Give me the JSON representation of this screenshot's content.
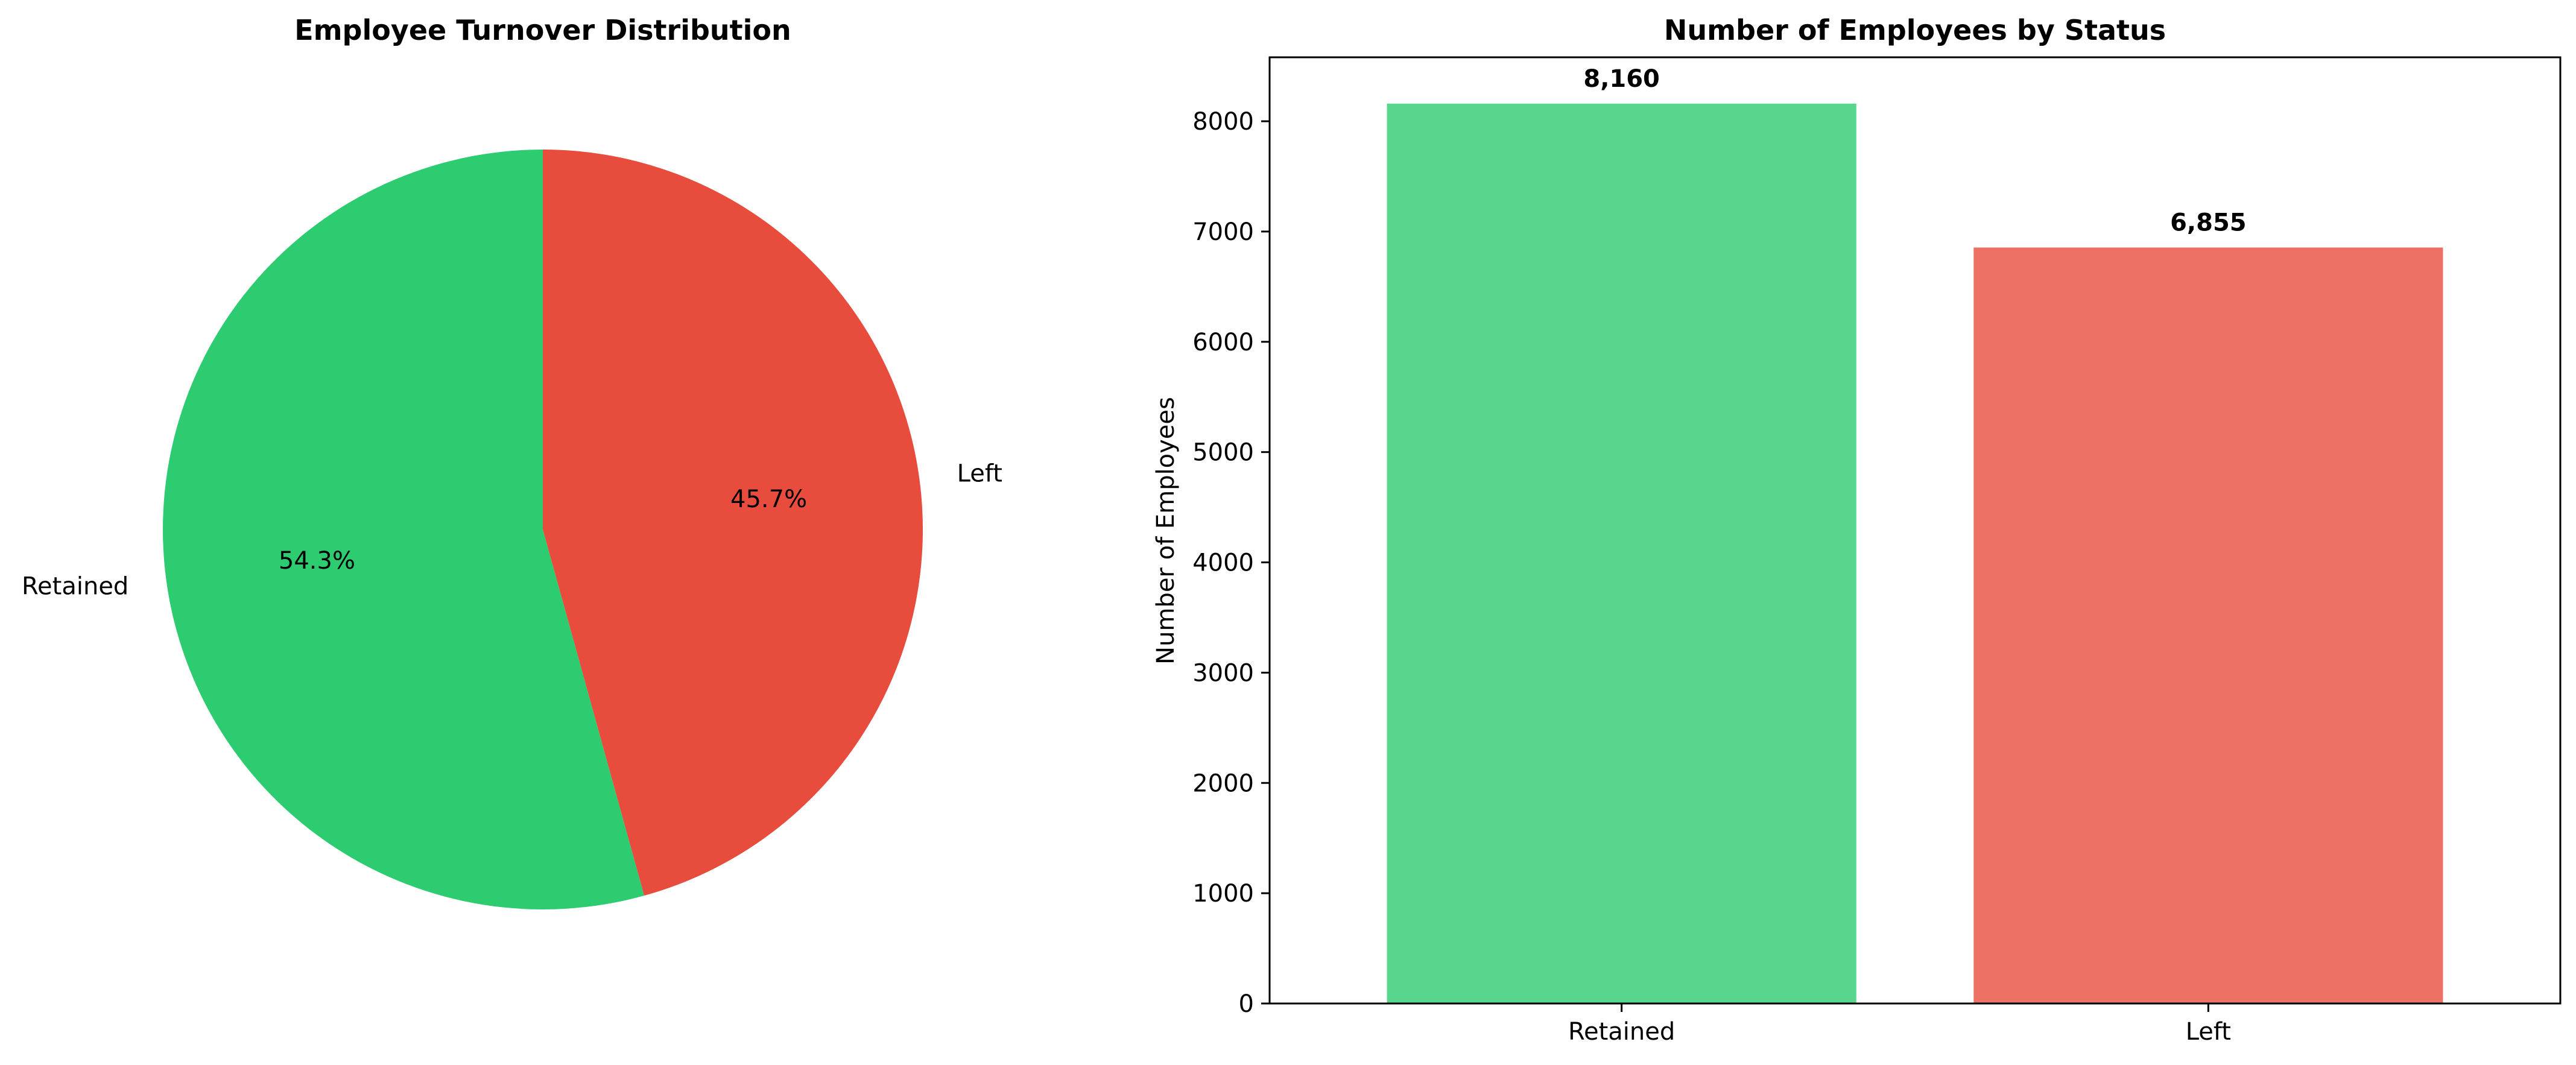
{
  "chart_data": [
    {
      "type": "pie",
      "title": "Employee Turnover Distribution",
      "labels": [
        "Retained",
        "Left"
      ],
      "values": [
        54.3,
        45.7
      ],
      "value_labels": [
        "54.3%",
        "45.7%"
      ],
      "colors": [
        "#2ecc71",
        "#e74c3c"
      ]
    },
    {
      "type": "bar",
      "title": "Number of Employees by Status",
      "categories": [
        "Retained",
        "Left"
      ],
      "values": [
        8160,
        6855
      ],
      "value_labels": [
        "8,160",
        "6,855"
      ],
      "ylabel": "Number of Employees",
      "xlabel": "",
      "ylim": [
        0,
        8580
      ],
      "yticks": [
        0,
        1000,
        2000,
        3000,
        4000,
        5000,
        6000,
        7000,
        8000
      ],
      "colors": [
        "#58d68d",
        "#ec7063"
      ],
      "grid": false
    }
  ]
}
